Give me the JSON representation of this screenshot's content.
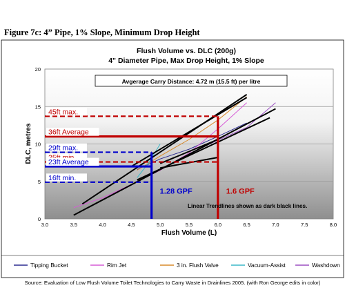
{
  "figure_heading": "Figure 7c: 4” Pipe, 1% Slope, Minimum Drop Height",
  "source_note": "Source: Evaluation of Low Flush Volume Toilet Technologies to Carry Waste in Drainlines 2005. (with Ron George edits in color)",
  "chart_data": {
    "type": "line",
    "title": "Flush Volume vs. DLC (200g)",
    "subtitle": "4\" Diameter Pipe, Max Drop Height, 1% Slope",
    "xlabel": "Flush Volume (L)",
    "ylabel": "DLC, metres",
    "xlim": [
      3.0,
      8.0
    ],
    "ylim": [
      0,
      20
    ],
    "x_ticks": [
      "3.0",
      "3.5",
      "4.0",
      "4.5",
      "5.0",
      "5.5",
      "6.0",
      "6.5",
      "7.0",
      "7.5",
      "8.0"
    ],
    "y_ticks": [
      "0",
      "5",
      "10",
      "15",
      "20"
    ],
    "grid": "horizontal",
    "legend_position": "bottom",
    "annotation_box": "Avgerage Carry Distance: 4.72 m (15.5 ft) per litre",
    "trendline_note": "Linear Trendlines shown as dark black lines.",
    "series": [
      {
        "name": "Tipping Bucket",
        "color": "#2b2b8f",
        "x": [
          4.6,
          5.0,
          5.5,
          6.0,
          6.5
        ],
        "y": [
          6.6,
          8.0,
          9.3,
          11.0,
          12.8
        ]
      },
      {
        "name": "Rim Jet",
        "color": "#d65bd6",
        "x": [
          3.5,
          4.0,
          4.5,
          5.0,
          5.5,
          6.0,
          6.5
        ],
        "y": [
          1.5,
          2.8,
          4.6,
          6.5,
          8.8,
          12.0,
          15.5
        ]
      },
      {
        "name": "3 in. Flush Valve",
        "color": "#d98a2a",
        "x": [
          4.6,
          5.0,
          5.5,
          6.0,
          6.5
        ],
        "y": [
          6.5,
          8.4,
          10.6,
          13.2,
          16.3
        ]
      },
      {
        "name": "Vacuum-Assist",
        "color": "#3cb8c8",
        "x": [
          4.6,
          4.8,
          5.0
        ],
        "y": [
          5.5,
          7.5,
          10.0
        ]
      },
      {
        "name": "Washdown",
        "color": "#9b4fc2",
        "x": [
          5.5,
          6.0,
          6.5,
          7.0
        ],
        "y": [
          8.7,
          10.5,
          12.2,
          15.5
        ]
      }
    ],
    "trendlines": [
      {
        "x": [
          3.5,
          7.0
        ],
        "y": [
          0.5,
          14.7
        ]
      },
      {
        "x": [
          3.65,
          6.5
        ],
        "y": [
          2.0,
          16.6
        ]
      },
      {
        "x": [
          4.5,
          6.5
        ],
        "y": [
          7.0,
          16.2
        ]
      },
      {
        "x": [
          4.6,
          6.9
        ],
        "y": [
          5.2,
          13.5
        ]
      },
      {
        "x": [
          5.0,
          6.0
        ],
        "y": [
          7.4,
          10.6
        ]
      },
      {
        "x": [
          5.0,
          6.0
        ],
        "y": [
          6.8,
          8.2
        ]
      }
    ],
    "reference_lines": [
      {
        "label": "45ft max.",
        "y": 13.7,
        "x_end": 6.0,
        "color": "#c00000",
        "style": "dashed"
      },
      {
        "label": "36ft Average",
        "y": 11.0,
        "x_end": 6.0,
        "color": "#c00000",
        "style": "solid"
      },
      {
        "label": "29ft max.",
        "y": 8.9,
        "x_end": 4.85,
        "color": "#0000cc",
        "style": "dashed"
      },
      {
        "label": "25ft min.",
        "y": 7.6,
        "x_end": 6.0,
        "color": "#c00000",
        "style": "dashed"
      },
      {
        "label": "23ft Average",
        "y": 7.0,
        "x_end": 4.85,
        "color": "#0000cc",
        "style": "solid"
      },
      {
        "label": "16ft min.",
        "y": 4.9,
        "x_end": 4.85,
        "color": "#0000cc",
        "style": "dashed"
      }
    ],
    "gpf_markers": [
      {
        "label": "1.28 GPF",
        "x": 4.85,
        "y_top": 8.9,
        "color": "#0000cc"
      },
      {
        "label": "1.6 GPF",
        "x": 6.0,
        "y_top": 13.7,
        "color": "#c00000"
      }
    ]
  }
}
